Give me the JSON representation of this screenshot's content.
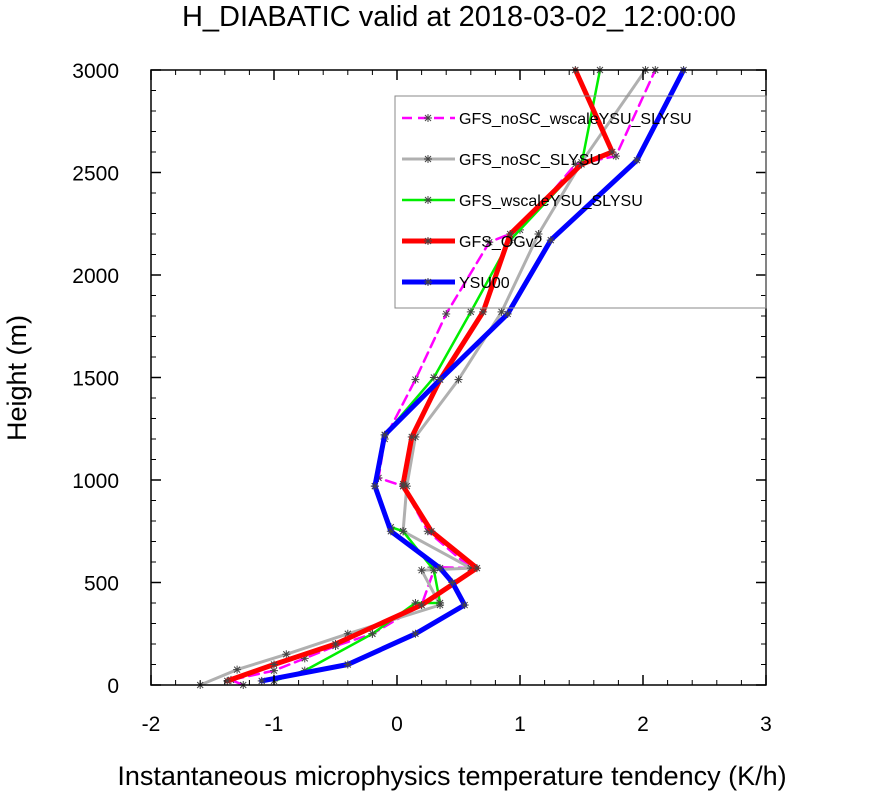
{
  "chart_data": {
    "type": "line",
    "title": "H_DIABATIC valid at 2018-03-02_12:00:00",
    "xlabel": "Instantaneous microphysics temperature tendency (K/h)",
    "ylabel": "Height (m)",
    "xlim": [
      -2,
      3
    ],
    "ylim": [
      0,
      3000
    ],
    "x_ticks": [
      -2,
      -1,
      0,
      1,
      2,
      3
    ],
    "y_ticks": [
      0,
      500,
      1000,
      1500,
      2000,
      2500,
      3000
    ],
    "x_tick_labels": [
      "-2",
      "-1",
      "0",
      "1",
      "2",
      "3"
    ],
    "y_tick_labels": [
      "0",
      "500",
      "1000",
      "1500",
      "2000",
      "2500",
      "3000"
    ],
    "legend_position": "top-right",
    "grid": false,
    "series": [
      {
        "name": "GFS_noSC_wscaleYSU_SLYSU",
        "color": "#ff00ff",
        "dash": "dashed",
        "x": [
          -1.25,
          -1.35,
          -1.0,
          -0.75,
          -0.5,
          -0.2,
          0.2,
          0.3,
          0.28,
          0.6,
          0.25,
          0.05,
          -0.15,
          -0.1,
          0.15,
          0.4,
          0.75,
          1.0,
          1.45,
          1.78,
          2.1
        ],
        "y": [
          0,
          25,
          70,
          130,
          190,
          250,
          390,
          560,
          575,
          570,
          750,
          970,
          1010,
          1200,
          1490,
          1810,
          2160,
          2220,
          2540,
          2580,
          3000
        ]
      },
      {
        "name": "GFS_noSC_SLYSU",
        "color": "#b0b0b0",
        "dash": "solid",
        "x": [
          -1.6,
          -1.3,
          -0.9,
          -0.4,
          0.35,
          0.2,
          0.6,
          0.05,
          0.08,
          0.15,
          0.5,
          0.85,
          1.15,
          1.5,
          2.02
        ],
        "y": [
          0,
          75,
          150,
          250,
          390,
          560,
          570,
          750,
          970,
          1210,
          1490,
          1820,
          2200,
          2550,
          3000
        ]
      },
      {
        "name": "GFS_wscaleYSU_SLYSU",
        "color": "#00ee00",
        "dash": "solid",
        "x": [
          -1.0,
          -0.75,
          -0.2,
          0.15,
          0.35,
          0.3,
          0.05,
          -0.05,
          -0.18,
          -0.1,
          0.3,
          0.6,
          0.92,
          1.5,
          1.65
        ],
        "y": [
          20,
          70,
          250,
          400,
          400,
          560,
          750,
          770,
          970,
          1220,
          1500,
          1820,
          2170,
          2540,
          3000
        ]
      },
      {
        "name": "GFS_OGv2",
        "color": "#ff0000",
        "dash": "solid",
        "x": [
          -1.38,
          -1.0,
          -0.5,
          0.2,
          0.65,
          0.28,
          0.05,
          0.05,
          0.12,
          0.35,
          0.7,
          0.92,
          1.5,
          1.75,
          1.45
        ],
        "y": [
          20,
          100,
          200,
          390,
          570,
          750,
          970,
          980,
          1210,
          1490,
          1820,
          2200,
          2540,
          2600,
          3000
        ]
      },
      {
        "name": "YSU00",
        "color": "#0000ff",
        "dash": "solid",
        "x": [
          -1.1,
          -0.4,
          0.15,
          0.55,
          0.45,
          0.35,
          -0.05,
          -0.18,
          -0.1,
          0.35,
          0.9,
          1.25,
          1.95,
          2.33
        ],
        "y": [
          20,
          100,
          250,
          390,
          500,
          570,
          750,
          970,
          1220,
          1490,
          1810,
          2170,
          2560,
          3000
        ]
      }
    ]
  }
}
